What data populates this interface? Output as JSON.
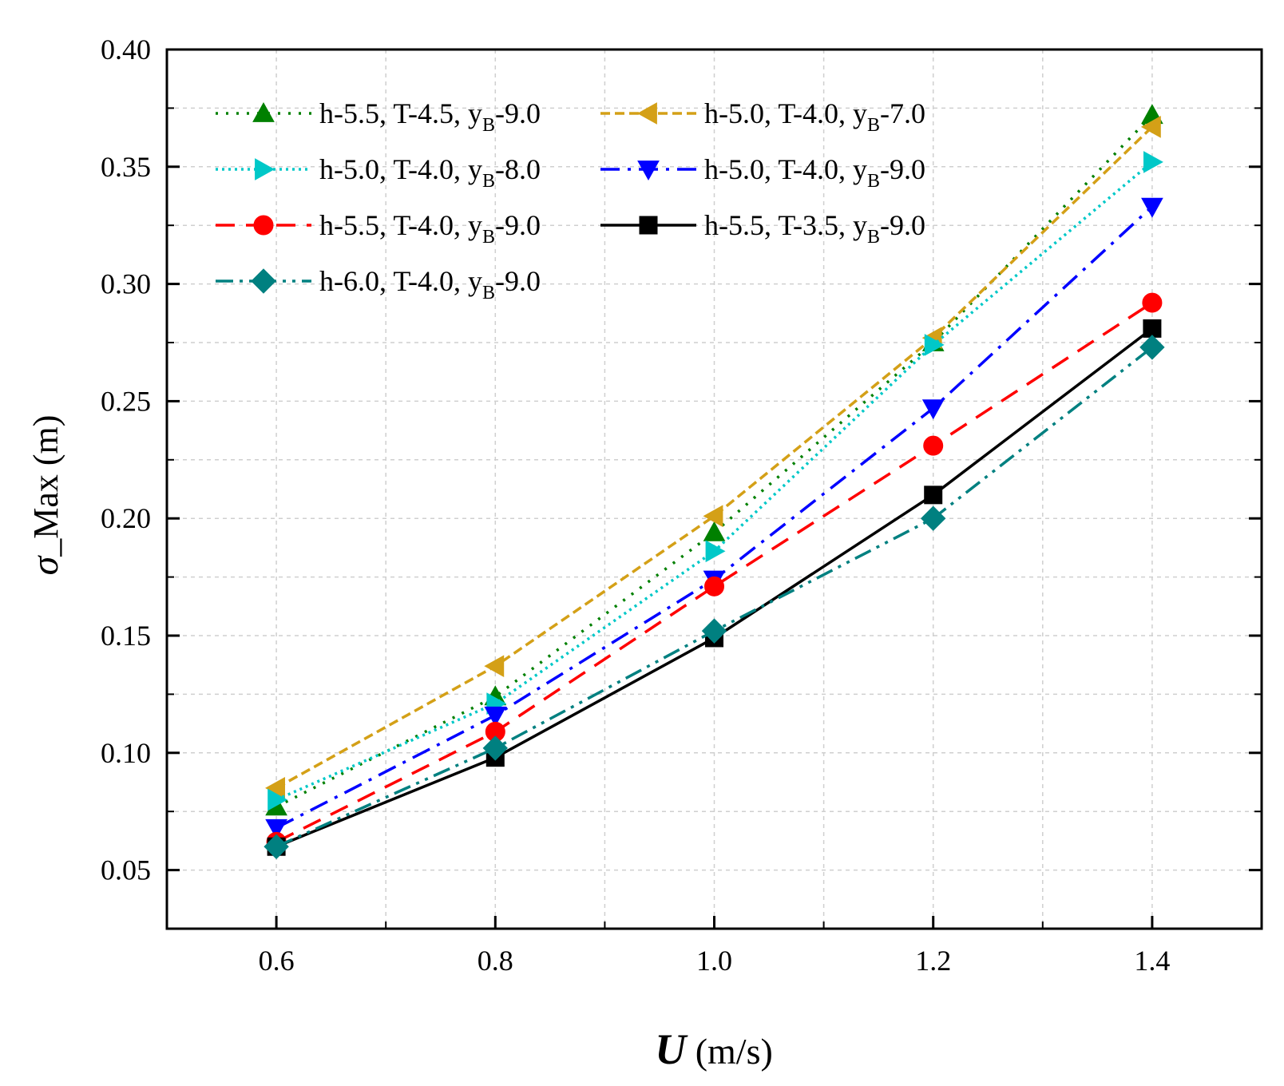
{
  "chart_data": {
    "type": "line",
    "xlabel": {
      "symbol": "U",
      "unit": " (m/s)"
    },
    "ylabel": {
      "symbol": "σ",
      "rest": "_Max (m)"
    },
    "x": [
      0.6,
      0.8,
      1.0,
      1.2,
      1.4
    ],
    "xlim": [
      0.5,
      1.5
    ],
    "ylim": [
      0.025,
      0.4
    ],
    "x_ticks": [
      "0.6",
      "0.8",
      "1.0",
      "1.2",
      "1.4"
    ],
    "y_ticks": [
      "0.05",
      "0.10",
      "0.15",
      "0.20",
      "0.25",
      "0.30",
      "0.35",
      "0.40"
    ],
    "grid": true,
    "legend_position": "top-left",
    "series": [
      {
        "name": {
          "a": "h-5.5, T-4.5, y",
          "sub": "B",
          "b": "-9.0"
        },
        "values": [
          0.077,
          0.124,
          0.194,
          0.275,
          0.372
        ],
        "color": "#008000",
        "marker": "triangle-up",
        "dash": "dot"
      },
      {
        "name": {
          "a": "h-5.0, T-4.0, y",
          "sub": "B",
          "b": "-7.0"
        },
        "values": [
          0.085,
          0.137,
          0.201,
          0.277,
          0.367
        ],
        "color": "#d4a017",
        "marker": "triangle-left",
        "dash": "dash"
      },
      {
        "name": {
          "a": "h-5.0, T-4.0, y",
          "sub": "B",
          "b": "-8.0"
        },
        "values": [
          0.08,
          0.121,
          0.186,
          0.274,
          0.352
        ],
        "color": "#00c8c8",
        "marker": "triangle-right",
        "dash": "dotted"
      },
      {
        "name": {
          "a": "h-5.0, T-4.0, y",
          "sub": "B",
          "b": "-9.0"
        },
        "values": [
          0.068,
          0.116,
          0.174,
          0.247,
          0.333
        ],
        "color": "#0000ff",
        "marker": "triangle-down",
        "dash": "dashdot"
      },
      {
        "name": {
          "a": "h-5.5, T-4.0, y",
          "sub": "B",
          "b": "-9.0"
        },
        "values": [
          0.062,
          0.109,
          0.171,
          0.231,
          0.292
        ],
        "color": "#ff0000",
        "marker": "circle",
        "dash": "longdash"
      },
      {
        "name": {
          "a": "h-5.5, T-3.5, y",
          "sub": "B",
          "b": "-9.0"
        },
        "values": [
          0.06,
          0.098,
          0.149,
          0.21,
          0.281
        ],
        "color": "#000000",
        "marker": "square",
        "dash": "solid"
      },
      {
        "name": {
          "a": "h-6.0, T-4.0, y",
          "sub": "B",
          "b": "-9.0"
        },
        "values": [
          0.06,
          0.102,
          0.152,
          0.2,
          0.273
        ],
        "color": "#008080",
        "marker": "diamond",
        "dash": "dashdotdot"
      }
    ]
  }
}
